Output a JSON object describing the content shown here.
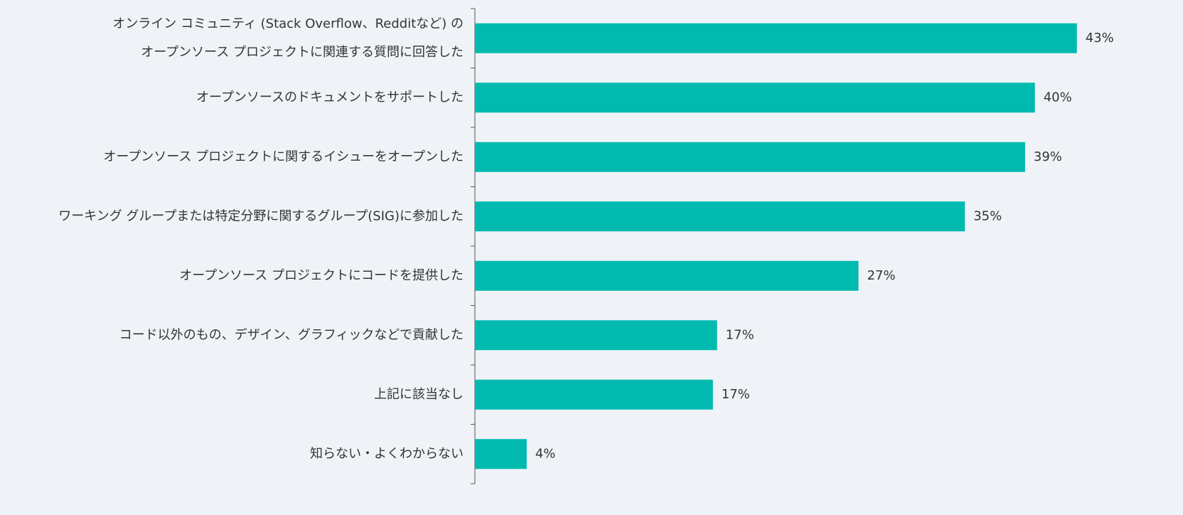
{
  "chart_data": {
    "type": "bar",
    "orientation": "horizontal",
    "categories": [
      [
        "オンライン コミュニティ (Stack Overflow、Redditなど) の",
        "オープンソース プロジェクトに関連する質問に回答した"
      ],
      "オープンソースのドキュメントをサポートした",
      "オープンソース プロジェクトに関するイシューをオープンした",
      "ワーキング グループまたは特定分野に関するグループ(SIG)に参加した",
      "オープンソース プロジェクトにコードを提供した",
      "コード以外のもの、デザイン、グラフィックなどで貢献した",
      "上記に該当なし",
      "知らない・よくわからない"
    ],
    "values": [
      43,
      40,
      39.3,
      35,
      27.4,
      17.3,
      17,
      3.7
    ],
    "value_labels": [
      "43%",
      "40%",
      "39%",
      "35%",
      "27%",
      "17%",
      "17%",
      "4%"
    ],
    "color": "#00bab0",
    "xlim": [
      0,
      45.5
    ]
  }
}
